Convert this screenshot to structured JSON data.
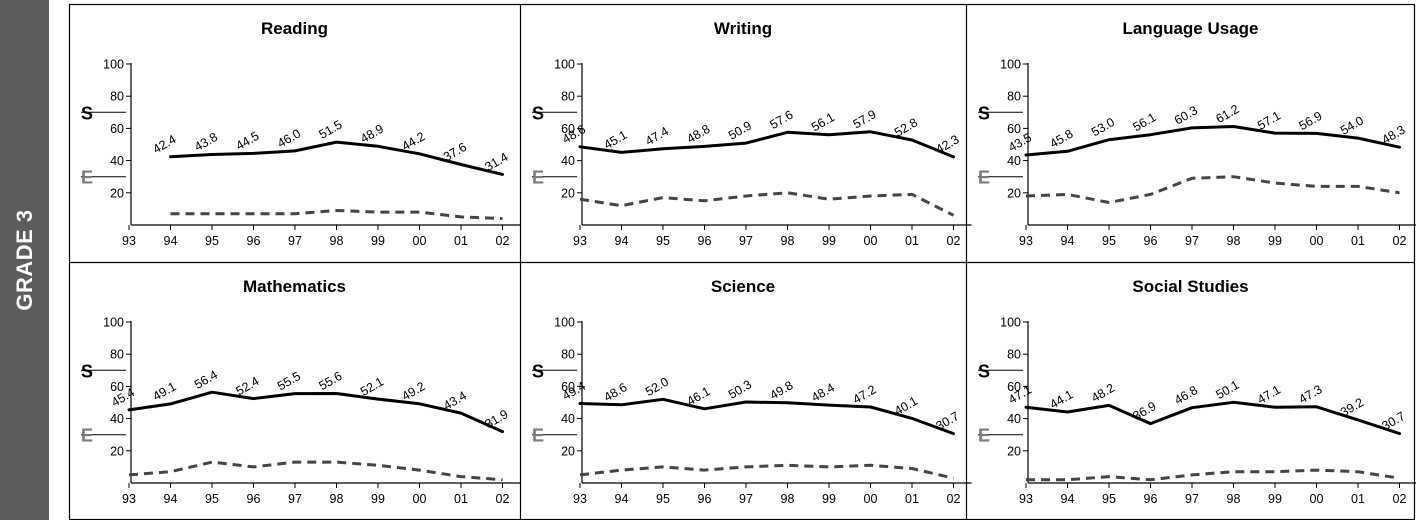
{
  "side_label": "GRADE 3",
  "legend": {
    "s_label": "S",
    "e_label": "E",
    "s_color": "#000000",
    "e_color": "#7a7a7a"
  },
  "x_categories": [
    "93",
    "94",
    "95",
    "96",
    "97",
    "98",
    "99",
    "00",
    "01",
    "02"
  ],
  "y_ticks": [
    "100",
    "80",
    "60",
    "40",
    "20"
  ],
  "chart_data": [
    {
      "type": "line",
      "title": "Reading",
      "ylim": [
        0,
        100
      ],
      "categories": [
        "93",
        "94",
        "95",
        "96",
        "97",
        "98",
        "99",
        "00",
        "01",
        "02"
      ],
      "series": [
        {
          "name": "S",
          "style": "solid",
          "color": "#000000",
          "values": [
            null,
            42.4,
            43.8,
            44.5,
            46.0,
            51.5,
            48.9,
            44.2,
            37.6,
            31.4
          ],
          "labels": [
            null,
            "42.4",
            "43.8",
            "44.5",
            "46.0",
            "51.5",
            "48.9",
            "44.2",
            "37.6",
            "31.4"
          ]
        },
        {
          "name": "E",
          "style": "dashed",
          "color": "#444444",
          "values": [
            null,
            7,
            7,
            7,
            7,
            9,
            8,
            8,
            5,
            4
          ]
        }
      ]
    },
    {
      "type": "line",
      "title": "Writing",
      "ylim": [
        0,
        100
      ],
      "categories": [
        "93",
        "94",
        "95",
        "96",
        "97",
        "98",
        "99",
        "00",
        "01",
        "02"
      ],
      "series": [
        {
          "name": "S",
          "style": "solid",
          "color": "#000000",
          "values": [
            48.6,
            45.1,
            47.4,
            48.8,
            50.9,
            57.6,
            56.1,
            57.9,
            52.8,
            42.3
          ],
          "labels": [
            "48.6",
            "45.1",
            "47.4",
            "48.8",
            "50.9",
            "57.6",
            "56.1",
            "57.9",
            "52.8",
            "42.3"
          ]
        },
        {
          "name": "E",
          "style": "dashed",
          "color": "#444444",
          "values": [
            16,
            12,
            17,
            15,
            18,
            20,
            16,
            18,
            19,
            6
          ]
        }
      ]
    },
    {
      "type": "line",
      "title": "Language Usage",
      "ylim": [
        0,
        100
      ],
      "categories": [
        "93",
        "94",
        "95",
        "96",
        "97",
        "98",
        "99",
        "00",
        "01",
        "02"
      ],
      "series": [
        {
          "name": "S",
          "style": "solid",
          "color": "#000000",
          "values": [
            43.5,
            45.8,
            53.0,
            56.1,
            60.3,
            61.2,
            57.1,
            56.9,
            54.0,
            48.3
          ],
          "labels": [
            "43.5",
            "45.8",
            "53.0",
            "56.1",
            "60.3",
            "61.2",
            "57.1",
            "56.9",
            "54.0",
            "48.3"
          ]
        },
        {
          "name": "E",
          "style": "dashed",
          "color": "#444444",
          "values": [
            18,
            19,
            14,
            19,
            29,
            30,
            26,
            24,
            24,
            20
          ]
        }
      ]
    },
    {
      "type": "line",
      "title": "Mathematics",
      "ylim": [
        0,
        100
      ],
      "categories": [
        "93",
        "94",
        "95",
        "96",
        "97",
        "98",
        "99",
        "00",
        "01",
        "02"
      ],
      "series": [
        {
          "name": "S",
          "style": "solid",
          "color": "#000000",
          "values": [
            45.4,
            49.1,
            56.4,
            52.4,
            55.5,
            55.6,
            52.1,
            49.2,
            43.4,
            31.9
          ],
          "labels": [
            "45.4",
            "49.1",
            "56.4",
            "52.4",
            "55.5",
            "55.6",
            "52.1",
            "49.2",
            "43.4",
            "31.9"
          ]
        },
        {
          "name": "E",
          "style": "dashed",
          "color": "#444444",
          "values": [
            5,
            7,
            13,
            10,
            13,
            13,
            11,
            8,
            4,
            2
          ]
        }
      ]
    },
    {
      "type": "line",
      "title": "Science",
      "ylim": [
        0,
        100
      ],
      "categories": [
        "93",
        "94",
        "95",
        "96",
        "97",
        "98",
        "99",
        "00",
        "01",
        "02"
      ],
      "series": [
        {
          "name": "S",
          "style": "solid",
          "color": "#000000",
          "values": [
            49.4,
            48.6,
            52.0,
            46.1,
            50.3,
            49.8,
            48.4,
            47.2,
            40.1,
            30.7
          ],
          "labels": [
            "49.4",
            "48.6",
            "52.0",
            "46.1",
            "50.3",
            "49.8",
            "48.4",
            "47.2",
            "40.1",
            "30.7"
          ]
        },
        {
          "name": "E",
          "style": "dashed",
          "color": "#444444",
          "values": [
            5,
            8,
            10,
            8,
            10,
            11,
            10,
            11,
            9,
            3
          ]
        }
      ]
    },
    {
      "type": "line",
      "title": "Social Studies",
      "ylim": [
        0,
        100
      ],
      "categories": [
        "93",
        "94",
        "95",
        "96",
        "97",
        "98",
        "99",
        "00",
        "01",
        "02"
      ],
      "series": [
        {
          "name": "S",
          "style": "solid",
          "color": "#000000",
          "values": [
            47.1,
            44.1,
            48.2,
            36.9,
            46.8,
            50.1,
            47.1,
            47.3,
            39.2,
            30.7
          ],
          "labels": [
            "47.1",
            "44.1",
            "48.2",
            "36.9",
            "46.8",
            "50.1",
            "47.1",
            "47.3",
            "39.2",
            "30.7"
          ]
        },
        {
          "name": "E",
          "style": "dashed",
          "color": "#444444",
          "values": [
            2,
            2,
            4,
            2,
            5,
            7,
            7,
            8,
            7,
            3
          ]
        }
      ]
    }
  ]
}
